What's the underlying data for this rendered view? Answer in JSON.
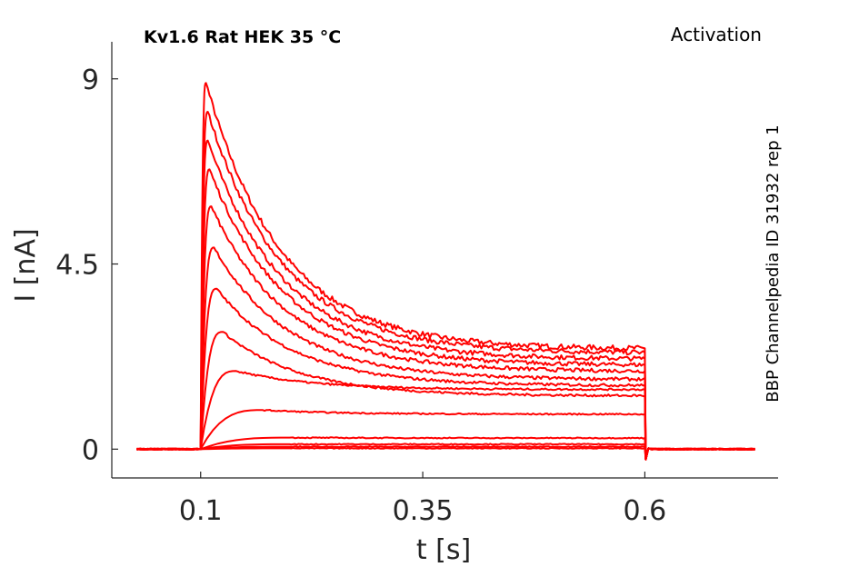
{
  "chart_data": {
    "type": "line",
    "title": "Kv1.6  Rat  HEK  35 °C",
    "corner_label": "Activation",
    "side_label": "BBP Channelpedia ID 31932 rep 1",
    "xlabel": "t [s]",
    "ylabel": "I [nA]",
    "xlim": [
      0.0,
      0.75
    ],
    "ylim": [
      -0.7,
      9.9
    ],
    "xticks": [
      {
        "value": 0.1,
        "label": "0.1"
      },
      {
        "value": 0.35,
        "label": "0.35"
      },
      {
        "value": 0.6,
        "label": "0.6"
      }
    ],
    "yticks": [
      {
        "value": 0,
        "label": "0"
      },
      {
        "value": 4.5,
        "label": "4.5"
      },
      {
        "value": 9,
        "label": "9"
      }
    ],
    "grid": false,
    "legend": "none",
    "color": "#ff0000",
    "stimulus": {
      "baseline_start": 0.028,
      "step_on": 0.1,
      "step_off": 0.6,
      "end": 0.727
    },
    "series": [
      {
        "peak": 8.9,
        "peak_time": 0.106,
        "end_value": 2.45
      },
      {
        "peak": 8.2,
        "peak_time": 0.108,
        "end_value": 2.35
      },
      {
        "peak": 7.5,
        "peak_time": 0.108,
        "end_value": 2.2
      },
      {
        "peak": 6.8,
        "peak_time": 0.11,
        "end_value": 2.05
      },
      {
        "peak": 5.9,
        "peak_time": 0.112,
        "end_value": 1.9
      },
      {
        "peak": 4.9,
        "peak_time": 0.115,
        "end_value": 1.7
      },
      {
        "peak": 3.9,
        "peak_time": 0.118,
        "end_value": 1.55
      },
      {
        "peak": 2.85,
        "peak_time": 0.125,
        "end_value": 1.3
      },
      {
        "peak": 1.9,
        "peak_time": 0.14,
        "end_value": 1.45
      },
      {
        "peak": 0.95,
        "peak_time": 0.17,
        "end_value": 0.85
      },
      {
        "peak": 0.28,
        "peak_time": 0.2,
        "end_value": 0.27
      },
      {
        "peak": 0.12,
        "peak_time": 0.2,
        "end_value": 0.12
      },
      {
        "peak": 0.06,
        "peak_time": 0.2,
        "end_value": 0.06
      },
      {
        "peak": 0.02,
        "peak_time": 0.2,
        "end_value": 0.02
      }
    ]
  }
}
